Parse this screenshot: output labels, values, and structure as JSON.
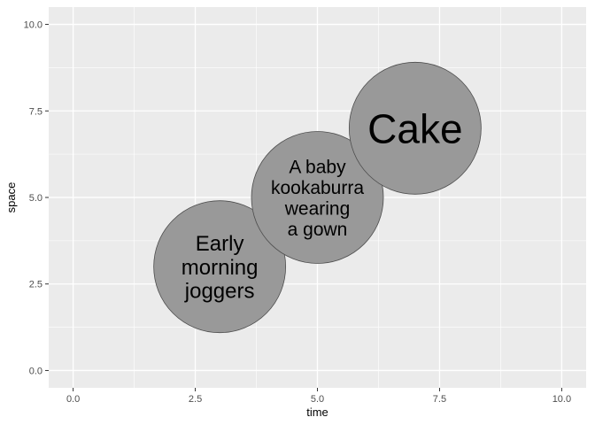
{
  "chart_data": {
    "type": "scatter",
    "xlabel": "time",
    "ylabel": "space",
    "xlim": [
      -0.5,
      10.5
    ],
    "ylim": [
      -0.5,
      10.5
    ],
    "x_ticks": [
      0.0,
      2.5,
      5.0,
      7.5,
      10.0
    ],
    "y_ticks": [
      0.0,
      2.5,
      5.0,
      7.5,
      10.0
    ],
    "x_tick_labels": [
      "0.0",
      "2.5",
      "5.0",
      "7.5",
      "10.0"
    ],
    "y_tick_labels": [
      "0.0",
      "2.5",
      "5.0",
      "7.5",
      "10.0"
    ],
    "grid": true,
    "legend": "none",
    "points": [
      {
        "x": 3,
        "y": 3,
        "radius": 1.35,
        "label": "Early morning joggers",
        "lines": [
          "Early",
          "morning",
          "joggers"
        ]
      },
      {
        "x": 5,
        "y": 5,
        "radius": 1.35,
        "label": "A baby kookaburra wearing a gown",
        "lines": [
          "A baby",
          "kookaburra",
          "wearing",
          "a gown"
        ]
      },
      {
        "x": 7,
        "y": 7,
        "radius": 1.35,
        "label": "Cake",
        "lines": [
          "Cake"
        ]
      }
    ],
    "colors": {
      "panel": "#ebebeb",
      "grid": "#ffffff",
      "circle_fill": "#999999",
      "circle_stroke": "#4d4d4d",
      "tick_text": "#4d4d4d",
      "axis_text": "#000000"
    }
  }
}
